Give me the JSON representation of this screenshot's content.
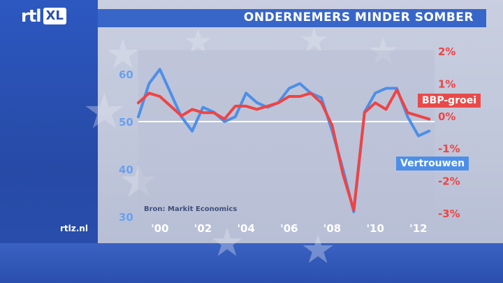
{
  "brand": {
    "logo_main": "rtl",
    "logo_suffix": "XL",
    "site_url": "rtlz.nl"
  },
  "header": {
    "title": "ONDERNEMERS MINDER SOMBER"
  },
  "chart_data": {
    "type": "line",
    "source": "Bron: Markit Economics",
    "x": [
      1999.0,
      1999.5,
      2000.0,
      2000.5,
      2001.0,
      2001.5,
      2002.0,
      2002.5,
      2003.0,
      2003.5,
      2004.0,
      2004.5,
      2005.0,
      2005.5,
      2006.0,
      2006.5,
      2007.0,
      2007.5,
      2008.0,
      2008.5,
      2009.0,
      2009.5,
      2010.0,
      2010.5,
      2011.0,
      2011.5,
      2012.0,
      2012.5
    ],
    "x_ticks": [
      "'00",
      "'02",
      "'04",
      "'06",
      "'08",
      "'10",
      "'12"
    ],
    "x_tick_values": [
      2000,
      2002,
      2004,
      2006,
      2008,
      2010,
      2012
    ],
    "left_axis": {
      "ticks": [
        "60",
        "50",
        "40",
        "30"
      ],
      "tick_values": [
        60,
        50,
        40,
        30
      ],
      "ylim": [
        30,
        65
      ],
      "color": "#6aa0f0"
    },
    "right_axis": {
      "ticks": [
        "2%",
        "1%",
        "0%",
        "-1%",
        "-2%",
        "-3%"
      ],
      "tick_values": [
        2,
        1,
        0,
        -1,
        -2,
        -3
      ],
      "ylim": [
        -3,
        2
      ],
      "color": "#ee4444"
    },
    "reference_line": {
      "axis": "left",
      "value": 50
    },
    "series": [
      {
        "name": "Vertrouwen",
        "axis": "left",
        "color": "#4d8fe8",
        "values": [
          51,
          58,
          61,
          56,
          51,
          48,
          53,
          52,
          50,
          51,
          56,
          54,
          53,
          54,
          57,
          58,
          56,
          55,
          48,
          40,
          31,
          52,
          56,
          57,
          57,
          51,
          47,
          48
        ]
      },
      {
        "name": "BBP-groei",
        "axis": "right",
        "color": "#ee4444",
        "values": [
          0.4,
          0.7,
          0.6,
          0.3,
          0.0,
          0.2,
          0.1,
          0.1,
          -0.1,
          0.3,
          0.3,
          0.2,
          0.3,
          0.4,
          0.6,
          0.6,
          0.7,
          0.4,
          -0.3,
          -1.8,
          -2.9,
          0.1,
          0.4,
          0.2,
          0.8,
          0.1,
          0.0,
          -0.1
        ]
      }
    ],
    "grid": false,
    "legend": "inline-right"
  }
}
